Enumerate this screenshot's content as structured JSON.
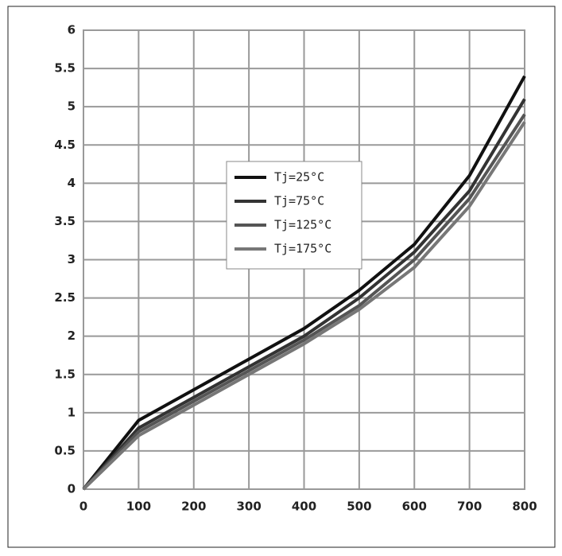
{
  "chart_data": {
    "type": "line",
    "x": [
      0,
      100,
      200,
      300,
      400,
      500,
      600,
      700,
      800
    ],
    "series": [
      {
        "name": "Tj=25°C",
        "color": "#111111",
        "values": [
          0,
          0.9,
          1.3,
          1.7,
          2.1,
          2.6,
          3.2,
          4.1,
          5.4
        ]
      },
      {
        "name": "Tj=75°C",
        "color": "#333333",
        "values": [
          0,
          0.8,
          1.2,
          1.6,
          2.0,
          2.5,
          3.1,
          3.9,
          5.1
        ]
      },
      {
        "name": "Tj=125°C",
        "color": "#555555",
        "values": [
          0,
          0.75,
          1.15,
          1.55,
          1.95,
          2.4,
          3.0,
          3.8,
          4.9
        ]
      },
      {
        "name": "Tj=175°C",
        "color": "#777777",
        "values": [
          0,
          0.7,
          1.1,
          1.5,
          1.9,
          2.35,
          2.9,
          3.7,
          4.8
        ]
      }
    ],
    "xlim": [
      0,
      800
    ],
    "xticks": [
      0,
      100,
      200,
      300,
      400,
      500,
      600,
      700,
      800
    ],
    "ylim": [
      0,
      6
    ],
    "yticks": [
      0,
      0.5,
      1,
      1.5,
      2,
      2.5,
      3,
      3.5,
      4,
      4.5,
      5,
      5.5,
      6
    ],
    "grid": true,
    "legend": "upper-left"
  }
}
